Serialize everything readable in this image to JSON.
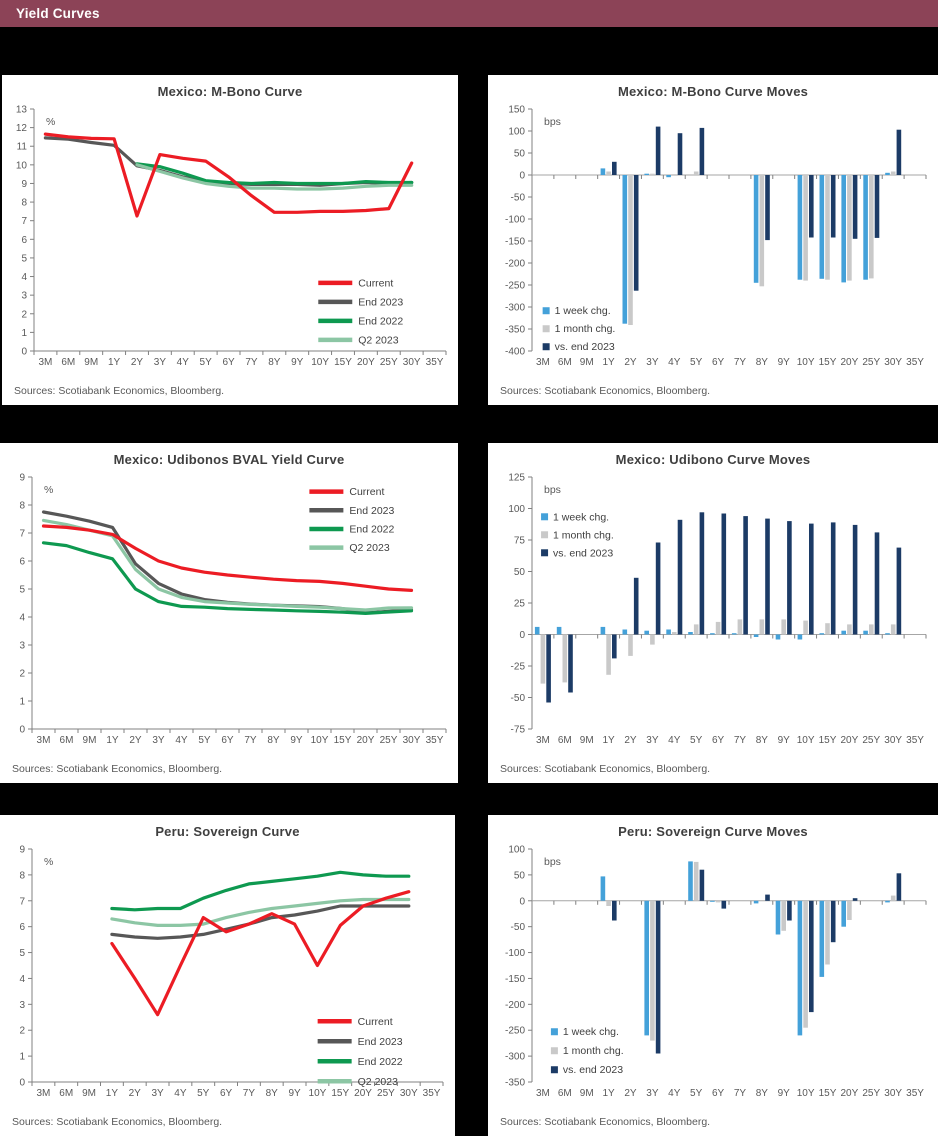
{
  "header": {
    "title": "Yield Curves"
  },
  "colors": {
    "header_bg": "#8C4357",
    "page_bg": "#000000",
    "panel_bg": "#FFFFFF",
    "title_text": "#3F3F3F",
    "axis_text": "#595959",
    "axis_line": "#808080",
    "zero_line": "#A6A6A6",
    "current_red": "#EC1C24",
    "end2023_gray": "#575757",
    "end2022_green": "#0E9950",
    "q2_2023_green": "#8CC6A4",
    "week_blue": "#44A1D9",
    "month_gray": "#C9C9C9",
    "vs_end_navy": "#1C3B66"
  },
  "chart_data": [
    {
      "type": "line",
      "title": "Mexico: M-Bono Curve",
      "unit": "%",
      "sources": "Sources: Scotiabank Economics, Bloomberg.",
      "categories": [
        "3M",
        "6M",
        "9M",
        "1Y",
        "2Y",
        "3Y",
        "4Y",
        "5Y",
        "6Y",
        "7Y",
        "8Y",
        "9Y",
        "10Y",
        "15Y",
        "20Y",
        "25Y",
        "30Y",
        "35Y"
      ],
      "ylim": [
        0,
        13
      ],
      "ystep": 1,
      "grid": false,
      "legend_position": "inside-right-bottom",
      "series": [
        {
          "name": "Current",
          "color": "#EC1C24",
          "values": [
            11.65,
            11.5,
            11.42,
            11.4,
            7.25,
            10.55,
            10.35,
            10.2,
            9.35,
            8.35,
            7.45,
            7.45,
            7.5,
            7.5,
            7.55,
            7.65,
            10.1,
            null
          ]
        },
        {
          "name": "End 2023",
          "color": "#575757",
          "values": [
            11.45,
            11.38,
            11.2,
            11.05,
            9.95,
            9.7,
            9.35,
            9.1,
            9.0,
            8.95,
            8.95,
            8.95,
            8.9,
            9.0,
            9.05,
            9.0,
            9.05,
            null
          ]
        },
        {
          "name": "End 2022",
          "color": "#0E9950",
          "values": [
            null,
            null,
            null,
            null,
            10.05,
            9.9,
            9.55,
            9.15,
            9.05,
            9.0,
            9.05,
            9.0,
            9.0,
            9.0,
            9.1,
            9.05,
            9.05,
            null
          ]
        },
        {
          "name": "Q2 2023",
          "color": "#8CC6A4",
          "values": [
            null,
            null,
            null,
            null,
            10.0,
            9.65,
            9.3,
            9.0,
            8.85,
            8.75,
            8.75,
            8.7,
            8.7,
            8.75,
            8.85,
            8.9,
            8.9,
            null
          ]
        }
      ]
    },
    {
      "type": "bar",
      "title": "Mexico: M-Bono Curve Moves",
      "unit": "bps",
      "sources": "Sources: Scotiabank Economics, Bloomberg.",
      "categories": [
        "3M",
        "6M",
        "9M",
        "1Y",
        "2Y",
        "3Y",
        "4Y",
        "5Y",
        "6Y",
        "7Y",
        "8Y",
        "9Y",
        "10Y",
        "15Y",
        "20Y",
        "25Y",
        "30Y",
        "35Y"
      ],
      "ylim": [
        -400,
        150
      ],
      "ystep": 50,
      "grid": false,
      "legend_position": "inside-left-bottom",
      "series": [
        {
          "name": "1 week chg.",
          "color": "#44A1D9",
          "values": [
            null,
            null,
            null,
            15,
            -338,
            3,
            -5,
            null,
            null,
            null,
            -245,
            null,
            -238,
            -236,
            -244,
            -238,
            5,
            null
          ]
        },
        {
          "name": "1 month chg.",
          "color": "#C9C9C9",
          "values": [
            null,
            null,
            null,
            8,
            -341,
            3,
            2,
            8,
            null,
            null,
            -253,
            null,
            -240,
            -238,
            -240,
            -235,
            8,
            null
          ]
        },
        {
          "name": "vs. end 2023",
          "color": "#1C3B66",
          "values": [
            null,
            null,
            null,
            30,
            -263,
            110,
            95,
            107,
            null,
            null,
            -148,
            null,
            -142,
            -142,
            -145,
            -143,
            103,
            null
          ]
        }
      ]
    },
    {
      "type": "line",
      "title": "Mexico: Udibonos BVAL Yield Curve",
      "unit": "%",
      "sources": "Sources: Scotiabank Economics, Bloomberg.",
      "categories": [
        "3M",
        "6M",
        "9M",
        "1Y",
        "2Y",
        "3Y",
        "4Y",
        "5Y",
        "6Y",
        "7Y",
        "8Y",
        "9Y",
        "10Y",
        "15Y",
        "20Y",
        "25Y",
        "30Y",
        "35Y"
      ],
      "ylim": [
        0,
        9
      ],
      "ystep": 1,
      "grid": false,
      "legend_position": "inside-right-top",
      "series": [
        {
          "name": "Current",
          "color": "#EC1C24",
          "values": [
            7.25,
            7.2,
            7.1,
            6.95,
            6.45,
            6.0,
            5.75,
            5.6,
            5.5,
            5.42,
            5.35,
            5.3,
            5.27,
            5.2,
            5.1,
            5.0,
            4.95,
            null
          ]
        },
        {
          "name": "End 2023",
          "color": "#575757",
          "values": [
            7.75,
            7.6,
            7.42,
            7.2,
            5.9,
            5.2,
            4.82,
            4.62,
            4.52,
            4.46,
            4.42,
            4.4,
            4.37,
            4.3,
            4.15,
            4.2,
            4.25,
            null
          ]
        },
        {
          "name": "End 2022",
          "color": "#0E9950",
          "values": [
            6.65,
            6.55,
            6.3,
            6.08,
            5.0,
            4.55,
            4.38,
            4.35,
            4.3,
            4.27,
            4.25,
            4.22,
            4.2,
            4.17,
            4.13,
            4.18,
            4.22,
            null
          ]
        },
        {
          "name": "Q2 2023",
          "color": "#8CC6A4",
          "values": [
            7.45,
            7.3,
            7.1,
            6.9,
            5.7,
            5.0,
            4.7,
            4.55,
            4.5,
            4.45,
            4.42,
            4.38,
            4.35,
            4.3,
            4.25,
            4.32,
            4.33,
            null
          ]
        }
      ]
    },
    {
      "type": "bar",
      "title": "Mexico: Udibono Curve Moves",
      "unit": "bps",
      "sources": "Sources: Scotiabank Economics, Bloomberg.",
      "categories": [
        "3M",
        "6M",
        "9M",
        "1Y",
        "2Y",
        "3Y",
        "4Y",
        "5Y",
        "6Y",
        "7Y",
        "8Y",
        "9Y",
        "10Y",
        "15Y",
        "20Y",
        "25Y",
        "30Y",
        "35Y"
      ],
      "ylim": [
        -75,
        125
      ],
      "ystep": 25,
      "grid": false,
      "legend_position": "inside-left-top",
      "series": [
        {
          "name": "1 week chg.",
          "color": "#44A1D9",
          "values": [
            6,
            6,
            null,
            6,
            4,
            3,
            4,
            2,
            1,
            1,
            -2,
            -4,
            -4,
            1,
            3,
            3,
            1,
            null
          ]
        },
        {
          "name": "1 month chg.",
          "color": "#C9C9C9",
          "values": [
            -39,
            -38,
            null,
            -32,
            -17,
            -8,
            2,
            8,
            10,
            12,
            12,
            12,
            11,
            9,
            8,
            8,
            8,
            null
          ]
        },
        {
          "name": "vs. end 2023",
          "color": "#1C3B66",
          "values": [
            -54,
            -46,
            null,
            -19,
            45,
            73,
            91,
            97,
            96,
            94,
            92,
            90,
            88,
            89,
            87,
            81,
            69,
            null
          ]
        }
      ]
    },
    {
      "type": "line",
      "title": "Peru: Sovereign Curve",
      "unit": "%",
      "sources": "Sources: Scotiabank Economics, Bloomberg.",
      "categories": [
        "3M",
        "6M",
        "9M",
        "1Y",
        "2Y",
        "3Y",
        "4Y",
        "5Y",
        "6Y",
        "7Y",
        "8Y",
        "9Y",
        "10Y",
        "15Y",
        "20Y",
        "25Y",
        "30Y",
        "35Y"
      ],
      "ylim": [
        0,
        9
      ],
      "ystep": 1,
      "grid": false,
      "legend_position": "inside-right-bottom",
      "series": [
        {
          "name": "Current",
          "color": "#EC1C24",
          "values": [
            null,
            null,
            null,
            5.35,
            4.0,
            2.6,
            4.5,
            6.35,
            5.8,
            6.1,
            6.5,
            6.1,
            4.5,
            6.05,
            6.8,
            7.1,
            7.35,
            null
          ]
        },
        {
          "name": "End 2023",
          "color": "#575757",
          "values": [
            null,
            null,
            null,
            5.7,
            5.6,
            5.55,
            5.6,
            5.7,
            5.9,
            6.1,
            6.35,
            6.45,
            6.6,
            6.8,
            6.8,
            6.8,
            6.8,
            null
          ]
        },
        {
          "name": "End 2022",
          "color": "#0E9950",
          "values": [
            null,
            null,
            null,
            6.7,
            6.65,
            6.7,
            6.7,
            7.1,
            7.4,
            7.65,
            7.75,
            7.85,
            7.95,
            8.1,
            8.0,
            7.95,
            7.95,
            null
          ]
        },
        {
          "name": "Q2 2023",
          "color": "#8CC6A4",
          "values": [
            null,
            null,
            null,
            6.3,
            6.15,
            6.05,
            6.05,
            6.1,
            6.35,
            6.55,
            6.7,
            6.8,
            6.9,
            7.0,
            7.05,
            7.05,
            7.05,
            null
          ]
        }
      ]
    },
    {
      "type": "bar",
      "title": "Peru: Sovereign Curve Moves",
      "unit": "bps",
      "sources": "Sources: Scotiabank Economics, Bloomberg.",
      "categories": [
        "3M",
        "6M",
        "9M",
        "1Y",
        "2Y",
        "3Y",
        "4Y",
        "5Y",
        "6Y",
        "7Y",
        "8Y",
        "9Y",
        "10Y",
        "15Y",
        "20Y",
        "25Y",
        "30Y",
        "35Y"
      ],
      "ylim": [
        -350,
        100
      ],
      "ystep": 50,
      "grid": false,
      "legend_position": "inside-left-bottom",
      "series": [
        {
          "name": "1 week chg.",
          "color": "#44A1D9",
          "values": [
            null,
            null,
            null,
            47,
            null,
            -260,
            null,
            76,
            -2,
            null,
            -5,
            -65,
            -260,
            -147,
            -50,
            null,
            -3,
            null
          ]
        },
        {
          "name": "1 month chg.",
          "color": "#C9C9C9",
          "values": [
            null,
            null,
            null,
            -10,
            null,
            -270,
            null,
            75,
            -3,
            null,
            null,
            -58,
            -245,
            -123,
            -37,
            null,
            10,
            null
          ]
        },
        {
          "name": "vs. end 2023",
          "color": "#1C3B66",
          "values": [
            null,
            null,
            null,
            -38,
            null,
            -295,
            null,
            60,
            -15,
            null,
            12,
            -38,
            -215,
            -80,
            5,
            null,
            53,
            null
          ]
        }
      ]
    }
  ]
}
